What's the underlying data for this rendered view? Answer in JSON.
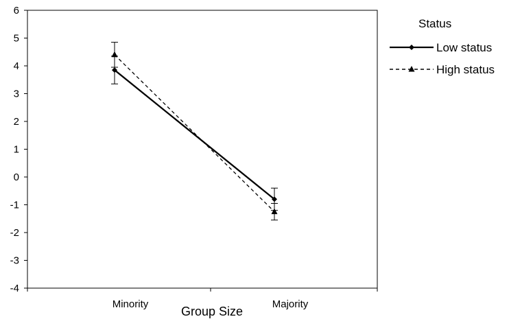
{
  "chart_data": {
    "type": "line",
    "title": "",
    "xlabel": "Group Size",
    "ylabel": "",
    "categories": [
      "Minority",
      "Majority"
    ],
    "ylim": [
      -4,
      6
    ],
    "yticks": [
      "6",
      "5",
      "4",
      "3",
      "2",
      "1",
      "0",
      "-1",
      "-2",
      "-3",
      "-4"
    ],
    "grid": false,
    "legend": {
      "title": "Status",
      "position": "right"
    },
    "series": [
      {
        "name": "Low status",
        "values": [
          3.85,
          -0.8
        ],
        "error": [
          0.5,
          0.4
        ],
        "style": "solid",
        "marker": "diamond",
        "color": "#000000"
      },
      {
        "name": "High status",
        "values": [
          4.4,
          -1.25
        ],
        "error": [
          0.45,
          0.3
        ],
        "style": "dashed",
        "marker": "triangle",
        "color": "#000000"
      }
    ]
  }
}
